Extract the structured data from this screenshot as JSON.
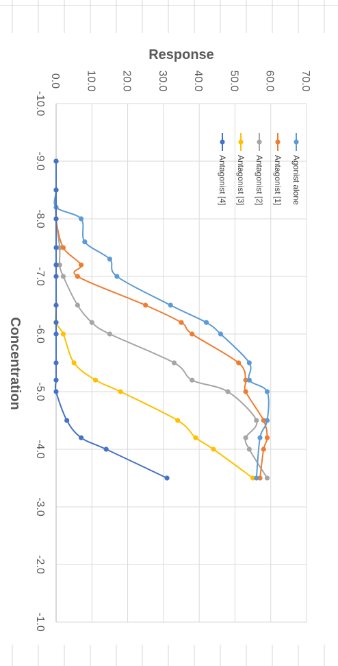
{
  "chart_data": {
    "type": "line",
    "xlabel": "Concentration",
    "ylabel": "Response",
    "xlim": [
      -10,
      -1
    ],
    "ylim": [
      0,
      70
    ],
    "x_ticks": [
      "-10.0",
      "-9.0",
      "-8.0",
      "-7.0",
      "-6.0",
      "-5.0",
      "-4.0",
      "-3.0",
      "-2.0",
      "-1.0"
    ],
    "y_ticks": [
      "0.0",
      "10.0",
      "20.0",
      "30.0",
      "40.0",
      "50.0",
      "60.0",
      "70.0"
    ],
    "grid": true,
    "legend_position": "top",
    "series": [
      {
        "name": "Agonist alone",
        "color": "#5B9BD5",
        "points": [
          [
            -9.0,
            0
          ],
          [
            -8.5,
            0
          ],
          [
            -8.2,
            0
          ],
          [
            -8.0,
            7
          ],
          [
            -7.6,
            8
          ],
          [
            -7.3,
            15
          ],
          [
            -7.0,
            17
          ],
          [
            -6.5,
            32
          ],
          [
            -6.2,
            42
          ],
          [
            -6.0,
            46
          ],
          [
            -5.5,
            54
          ],
          [
            -5.2,
            54
          ],
          [
            -5.0,
            59
          ],
          [
            -4.5,
            59
          ],
          [
            -4.2,
            57
          ],
          [
            -3.5,
            56
          ]
        ]
      },
      {
        "name": "Antagonist [1]",
        "color": "#ED7D31",
        "points": [
          [
            -9.0,
            0
          ],
          [
            -8.5,
            0
          ],
          [
            -8.0,
            0
          ],
          [
            -7.5,
            2
          ],
          [
            -7.2,
            7
          ],
          [
            -7.0,
            6
          ],
          [
            -6.5,
            25
          ],
          [
            -6.2,
            35
          ],
          [
            -6.0,
            38
          ],
          [
            -5.5,
            51
          ],
          [
            -5.2,
            53
          ],
          [
            -5.0,
            53
          ],
          [
            -4.5,
            58
          ],
          [
            -4.2,
            59
          ],
          [
            -4.0,
            58
          ],
          [
            -3.5,
            57
          ]
        ]
      },
      {
        "name": "Antagonist [2]",
        "color": "#A5A5A5",
        "points": [
          [
            -9.0,
            0
          ],
          [
            -8.5,
            0
          ],
          [
            -8.0,
            0
          ],
          [
            -7.5,
            1
          ],
          [
            -7.2,
            1
          ],
          [
            -7.0,
            2
          ],
          [
            -6.5,
            6
          ],
          [
            -6.2,
            10
          ],
          [
            -6.0,
            15
          ],
          [
            -5.5,
            33
          ],
          [
            -5.2,
            38
          ],
          [
            -5.0,
            48
          ],
          [
            -4.5,
            56
          ],
          [
            -4.2,
            53
          ],
          [
            -4.0,
            54
          ],
          [
            -3.5,
            59
          ]
        ]
      },
      {
        "name": "Antagonist [3]",
        "color": "#FFC000",
        "points": [
          [
            -9.0,
            0
          ],
          [
            -8.5,
            0
          ],
          [
            -8.0,
            0
          ],
          [
            -7.5,
            0
          ],
          [
            -7.2,
            0
          ],
          [
            -7.0,
            0
          ],
          [
            -6.5,
            0
          ],
          [
            -6.2,
            0
          ],
          [
            -6.0,
            2
          ],
          [
            -5.5,
            5
          ],
          [
            -5.2,
            11
          ],
          [
            -5.0,
            18
          ],
          [
            -4.5,
            34
          ],
          [
            -4.2,
            39
          ],
          [
            -4.0,
            44
          ],
          [
            -3.5,
            55
          ]
        ]
      },
      {
        "name": "Antagonist [4]",
        "color": "#4472C4",
        "points": [
          [
            -9.0,
            0
          ],
          [
            -8.5,
            0
          ],
          [
            -8.0,
            0
          ],
          [
            -7.5,
            0
          ],
          [
            -7.2,
            0
          ],
          [
            -7.0,
            0
          ],
          [
            -6.5,
            0
          ],
          [
            -6.2,
            0
          ],
          [
            -6.0,
            0
          ],
          [
            -5.5,
            0
          ],
          [
            -5.2,
            0
          ],
          [
            -5.0,
            0
          ],
          [
            -4.5,
            3
          ],
          [
            -4.2,
            7
          ],
          [
            -4.0,
            14
          ],
          [
            -3.5,
            31
          ]
        ]
      }
    ]
  }
}
